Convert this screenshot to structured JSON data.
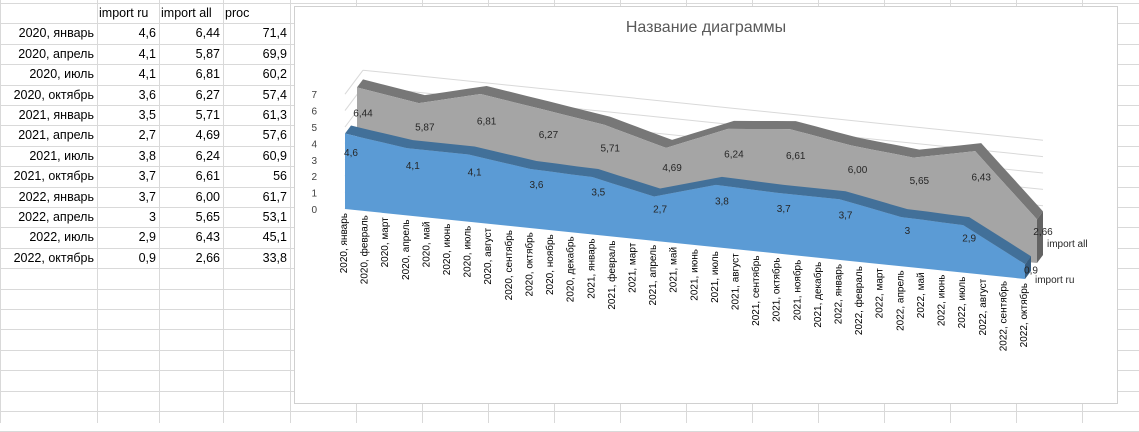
{
  "sheet": {
    "headers": [
      "import ru",
      "import all",
      "proc"
    ],
    "rows": [
      {
        "label": "2020, январь",
        "ru": "4,6",
        "all": "6,44",
        "proc": "71,4"
      },
      {
        "label": "2020, апрель",
        "ru": "4,1",
        "all": "5,87",
        "proc": "69,9"
      },
      {
        "label": "2020, июль",
        "ru": "4,1",
        "all": "6,81",
        "proc": "60,2"
      },
      {
        "label": "2020, октябрь",
        "ru": "3,6",
        "all": "6,27",
        "proc": "57,4"
      },
      {
        "label": "2021, январь",
        "ru": "3,5",
        "all": "5,71",
        "proc": "61,3"
      },
      {
        "label": "2021, апрель",
        "ru": "2,7",
        "all": "4,69",
        "proc": "57,6"
      },
      {
        "label": "2021, июль",
        "ru": "3,8",
        "all": "6,24",
        "proc": "60,9"
      },
      {
        "label": "2021, октябрь",
        "ru": "3,7",
        "all": "6,61",
        "proc": "56"
      },
      {
        "label": "2022, январь",
        "ru": "3,7",
        "all": "6,00",
        "proc": "61,7"
      },
      {
        "label": "2022, апрель",
        "ru": "3",
        "all": "5,65",
        "proc": "53,1"
      },
      {
        "label": "2022, июль",
        "ru": "2,9",
        "all": "6,43",
        "proc": "45,1"
      },
      {
        "label": "2022, октябрь",
        "ru": "0,9",
        "all": "2,66",
        "proc": "33,8"
      }
    ]
  },
  "chart_data": {
    "type": "area",
    "title": "Название диаграммы",
    "categories": [
      "2020, январь",
      "2020, февраль",
      "2020, март",
      "2020, апрель",
      "2020, май",
      "2020, июнь",
      "2020, июль",
      "2020, август",
      "2020, сентябрь",
      "2020, октябрь",
      "2020, ноябрь",
      "2020, декабрь",
      "2021, январь",
      "2021, февраль",
      "2021, март",
      "2021, апрель",
      "2021, май",
      "2021, июнь",
      "2021, июль",
      "2021, август",
      "2021, сентябрь",
      "2021, октябрь",
      "2021, ноябрь",
      "2021, декабрь",
      "2022, январь",
      "2022, февраль",
      "2022, март",
      "2022, апрель",
      "2022, май",
      "2022, июнь",
      "2022, июль",
      "2022, август",
      "2022, сентябрь",
      "2022, октябрь"
    ],
    "yticks": [
      "0",
      "1",
      "2",
      "3",
      "4",
      "5",
      "6",
      "7"
    ],
    "ylim": [
      0,
      7
    ],
    "grid": true,
    "legend_position": "right",
    "series": [
      {
        "name": "import all",
        "color": "#a5a5a5",
        "values": [
          6.44,
          6.25,
          6.06,
          5.87,
          6.18,
          6.5,
          6.81,
          6.63,
          6.45,
          6.27,
          6.08,
          5.9,
          5.71,
          5.37,
          5.03,
          4.69,
          5.21,
          5.72,
          6.24,
          6.36,
          6.49,
          6.61,
          6.41,
          6.2,
          6.0,
          5.88,
          5.77,
          5.65,
          5.91,
          6.17,
          6.43,
          5.17,
          3.92,
          2.66
        ],
        "labels": [
          "6,44",
          "",
          "",
          "5,87",
          "",
          "",
          "6,81",
          "",
          "",
          "6,27",
          "",
          "",
          "5,71",
          "",
          "",
          "4,69",
          "",
          "",
          "6,24",
          "",
          "",
          "6,61",
          "",
          "",
          "6,00",
          "",
          "",
          "5,65",
          "",
          "",
          "6,43",
          "",
          "",
          "2,66"
        ]
      },
      {
        "name": "import ru",
        "color": "#5b9bd5",
        "values": [
          4.6,
          4.43,
          4.27,
          4.1,
          4.1,
          4.1,
          4.1,
          3.93,
          3.77,
          3.6,
          3.57,
          3.53,
          3.5,
          3.23,
          2.97,
          2.7,
          3.07,
          3.43,
          3.8,
          3.77,
          3.73,
          3.7,
          3.7,
          3.7,
          3.7,
          3.47,
          3.23,
          3.0,
          2.97,
          2.93,
          2.9,
          2.23,
          1.57,
          0.9
        ],
        "labels": [
          "4,6",
          "",
          "",
          "4,1",
          "",
          "",
          "4,1",
          "",
          "",
          "3,6",
          "",
          "",
          "3,5",
          "",
          "",
          "2,7",
          "",
          "",
          "3,8",
          "",
          "",
          "3,7",
          "",
          "",
          "3,7",
          "",
          "",
          "3",
          "",
          "",
          "2,9",
          "",
          "",
          "0,9"
        ]
      }
    ]
  }
}
